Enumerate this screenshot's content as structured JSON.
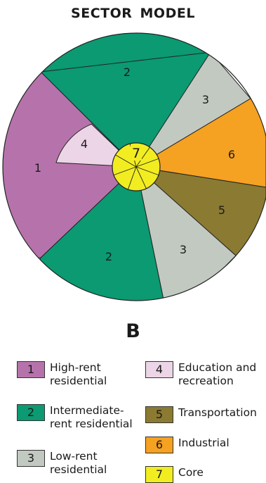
{
  "title": "SECTOR  MODEL",
  "panel_letter": "B",
  "colors": {
    "high_rent": "#b673ab",
    "intermediate": "#0b9a72",
    "low_rent": "#c1c9c1",
    "education": "#ecd5e6",
    "transportation": "#8b7a32",
    "industrial": "#f5a121",
    "core": "#f2ed20",
    "outline": "#222222"
  },
  "sectors": [
    {
      "number": "2",
      "type": "intermediate"
    },
    {
      "number": "3",
      "type": "low_rent"
    },
    {
      "number": "6",
      "type": "industrial"
    },
    {
      "number": "5",
      "type": "transportation"
    },
    {
      "number": "3",
      "type": "low_rent"
    },
    {
      "number": "2",
      "type": "intermediate"
    },
    {
      "number": "1",
      "type": "high_rent"
    },
    {
      "number": "4",
      "type": "education"
    }
  ],
  "core": {
    "number": "7"
  },
  "legend": [
    {
      "number": "1",
      "label": "High-rent\nresidential",
      "color": "#b673ab"
    },
    {
      "number": "2",
      "label": "Intermediate-\nrent residential",
      "color": "#0b9a72"
    },
    {
      "number": "3",
      "label": "Low-rent\nresidential",
      "color": "#c1c9c1"
    },
    {
      "number": "4",
      "label": "Education and\nrecreation",
      "color": "#ecd5e6"
    },
    {
      "number": "5",
      "label": "Transportation",
      "color": "#8b7a32"
    },
    {
      "number": "6",
      "label": "Industrial",
      "color": "#f5a121"
    },
    {
      "number": "7",
      "label": "Core",
      "color": "#f2ed20"
    }
  ]
}
